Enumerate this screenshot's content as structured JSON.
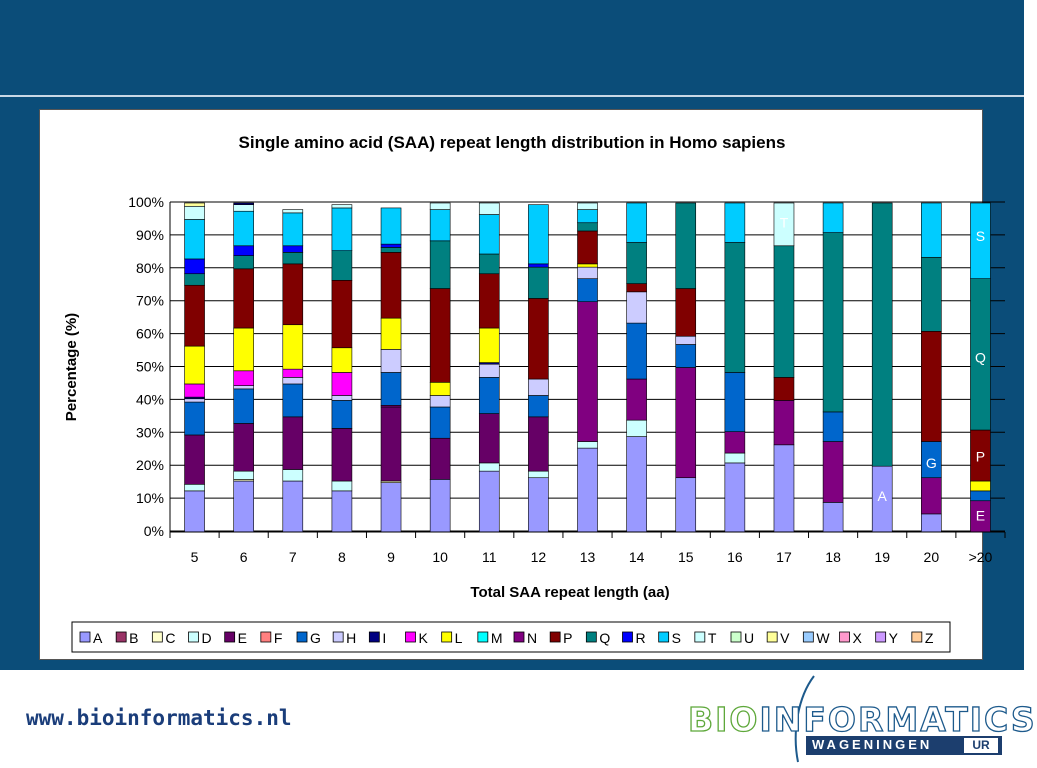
{
  "footer": {
    "url": "www.bioinformatics.nl",
    "logo_bio": "BIO",
    "logo_rest": "INFORMATICS",
    "logo_wageningen": "WAGENINGEN",
    "logo_ur": "UR"
  },
  "chart_data": {
    "type": "stacked-bar-100",
    "title": "Single amino acid (SAA) repeat length distribution in Homo sapiens",
    "xlabel": "Total SAA repeat length (aa)",
    "ylabel": "Percentage (%)",
    "ylim": [
      0,
      100
    ],
    "yticks": [
      "0%",
      "10%",
      "20%",
      "30%",
      "40%",
      "50%",
      "60%",
      "70%",
      "80%",
      "90%",
      "100%"
    ],
    "grid": true,
    "legend_position": "bottom",
    "categories": [
      "5",
      "6",
      "7",
      "8",
      "9",
      "10",
      "11",
      "12",
      "13",
      "14",
      "15",
      "16",
      "17",
      "18",
      "19",
      "20",
      ">20"
    ],
    "legend": [
      "A",
      "B",
      "C",
      "D",
      "E",
      "F",
      "G",
      "H",
      "I",
      "K",
      "L",
      "M",
      "N",
      "P",
      "Q",
      "R",
      "S",
      "T",
      "U",
      "V",
      "W",
      "X",
      "Y",
      "Z"
    ],
    "colors": {
      "A": "#9999ff",
      "B": "#993366",
      "C": "#ffffcc",
      "D": "#ccffff",
      "E": "#660066",
      "F": "#ff8080",
      "G": "#0066cc",
      "H": "#ccccff",
      "I": "#000080",
      "K": "#ff00ff",
      "L": "#ffff00",
      "M": "#00ffff",
      "N": "#800080",
      "P": "#800000",
      "Q": "#008080",
      "R": "#0000ff",
      "S": "#00ccff",
      "T": "#ccffff",
      "U": "#ccffcc",
      "V": "#ffff99",
      "W": "#99ccff",
      "X": "#ff99cc",
      "Y": "#cc99ff",
      "Z": "#ffcc99"
    },
    "stacks": [
      [
        [
          "A",
          12.5
        ],
        [
          "D",
          2
        ],
        [
          "E",
          15
        ],
        [
          "G",
          10
        ],
        [
          "H",
          1
        ],
        [
          "I",
          0.5
        ],
        [
          "K",
          4
        ],
        [
          "L",
          11.5
        ],
        [
          "P",
          18.5
        ],
        [
          "Q",
          3.5
        ],
        [
          "R",
          4.5
        ],
        [
          "S",
          12
        ],
        [
          "T",
          4
        ],
        [
          "V",
          1
        ]
      ],
      [
        [
          "A",
          15.5
        ],
        [
          "C",
          0.5
        ],
        [
          "D",
          2.5
        ],
        [
          "E",
          14.5
        ],
        [
          "G",
          10.5
        ],
        [
          "H",
          1
        ],
        [
          "K",
          4.5
        ],
        [
          "L",
          13
        ],
        [
          "P",
          18
        ],
        [
          "Q",
          4
        ],
        [
          "R",
          3
        ],
        [
          "S",
          10.5
        ],
        [
          "T",
          2
        ],
        [
          "I",
          0.5
        ]
      ],
      [
        [
          "A",
          15.5
        ],
        [
          "D",
          3.5
        ],
        [
          "E",
          16
        ],
        [
          "G",
          10
        ],
        [
          "H",
          2
        ],
        [
          "K",
          2.5
        ],
        [
          "L",
          13.5
        ],
        [
          "P",
          18.5
        ],
        [
          "Q",
          3.5
        ],
        [
          "R",
          2
        ],
        [
          "S",
          10
        ],
        [
          "T",
          1
        ]
      ],
      [
        [
          "A",
          12.5
        ],
        [
          "D",
          3
        ],
        [
          "E",
          16
        ],
        [
          "G",
          8.5
        ],
        [
          "H",
          1.5
        ],
        [
          "K",
          7
        ],
        [
          "L",
          7.5
        ],
        [
          "P",
          20.5
        ],
        [
          "Q",
          9
        ],
        [
          "S",
          13
        ],
        [
          "T",
          1
        ]
      ],
      [
        [
          "A",
          15
        ],
        [
          "C",
          0.5
        ],
        [
          "E",
          22.5
        ],
        [
          "N",
          0.5
        ],
        [
          "G",
          10
        ],
        [
          "H",
          7
        ],
        [
          "L",
          9.5
        ],
        [
          "P",
          20
        ],
        [
          "Q",
          1.5
        ],
        [
          "R",
          1
        ],
        [
          "S",
          11
        ]
      ],
      [
        [
          "A",
          16
        ],
        [
          "E",
          12.5
        ],
        [
          "G",
          9.5
        ],
        [
          "H",
          3.5
        ],
        [
          "L",
          4
        ],
        [
          "P",
          28.5
        ],
        [
          "Q",
          14.5
        ],
        [
          "S",
          9.5
        ],
        [
          "T",
          2
        ]
      ],
      [
        [
          "A",
          18.5
        ],
        [
          "D",
          2.5
        ],
        [
          "E",
          15
        ],
        [
          "G",
          11
        ],
        [
          "H",
          4
        ],
        [
          "I",
          0.5
        ],
        [
          "L",
          10.5
        ],
        [
          "P",
          16.5
        ],
        [
          "Q",
          6
        ],
        [
          "S",
          12
        ],
        [
          "T",
          3.5
        ]
      ],
      [
        [
          "A",
          16.5
        ],
        [
          "D",
          2
        ],
        [
          "E",
          16.5
        ],
        [
          "G",
          6.5
        ],
        [
          "H",
          5
        ],
        [
          "P",
          24.5
        ],
        [
          "Q",
          9.5
        ],
        [
          "R",
          1
        ],
        [
          "S",
          18
        ]
      ],
      [
        [
          "A",
          25.5
        ],
        [
          "D",
          2
        ],
        [
          "N",
          42.5
        ],
        [
          "G",
          7
        ],
        [
          "H",
          3.5
        ],
        [
          "L",
          1
        ],
        [
          "P",
          10
        ],
        [
          "Q",
          2.5
        ],
        [
          "S",
          4
        ],
        [
          "T",
          2
        ]
      ],
      [
        [
          "A",
          29
        ],
        [
          "D",
          5
        ],
        [
          "N",
          12.5
        ],
        [
          "G",
          17
        ],
        [
          "H",
          9.5
        ],
        [
          "P",
          2.5
        ],
        [
          "Q",
          12.5
        ],
        [
          "S",
          12
        ]
      ],
      [
        [
          "A",
          16.5
        ],
        [
          "N",
          33.5
        ],
        [
          "G",
          7
        ],
        [
          "H",
          2.5
        ],
        [
          "P",
          14.5
        ],
        [
          "Q",
          26
        ]
      ],
      [
        [
          "A",
          21
        ],
        [
          "D",
          3
        ],
        [
          "N",
          6.5
        ],
        [
          "G",
          18
        ],
        [
          "Q",
          39.5
        ],
        [
          "S",
          12
        ]
      ],
      [
        [
          "A",
          26.5
        ],
        [
          "N",
          13.5
        ],
        [
          "P",
          7
        ],
        [
          "Q",
          40
        ],
        [
          "T",
          13
        ]
      ],
      [
        [
          "A",
          9
        ],
        [
          "N",
          18.5
        ],
        [
          "G",
          9
        ],
        [
          "Q",
          54.5
        ],
        [
          "S",
          9
        ]
      ],
      [
        [
          "A",
          20
        ],
        [
          "Q",
          80
        ]
      ],
      [
        [
          "A",
          5.5
        ],
        [
          "N",
          11
        ],
        [
          "G",
          11
        ],
        [
          "P",
          33.5
        ],
        [
          "Q",
          22.5
        ],
        [
          "S",
          16.5
        ]
      ],
      [
        [
          "N",
          9.5
        ],
        [
          "G",
          3
        ],
        [
          "L",
          3
        ],
        [
          "P",
          15.5
        ],
        [
          "Q",
          46
        ],
        [
          "S",
          23
        ]
      ]
    ],
    "annotations": [
      {
        "category": "17",
        "value": 94,
        "text": "T"
      },
      {
        "category": ">20",
        "value": 90,
        "text": "S"
      },
      {
        "category": ">20",
        "value": 53,
        "text": "Q"
      },
      {
        "category": ">20",
        "value": 23,
        "text": "P"
      },
      {
        "category": "20",
        "value": 21,
        "text": "G"
      },
      {
        "category": "19",
        "value": 11,
        "text": "A"
      },
      {
        "category": ">20",
        "value": 5,
        "text": "E"
      }
    ]
  }
}
